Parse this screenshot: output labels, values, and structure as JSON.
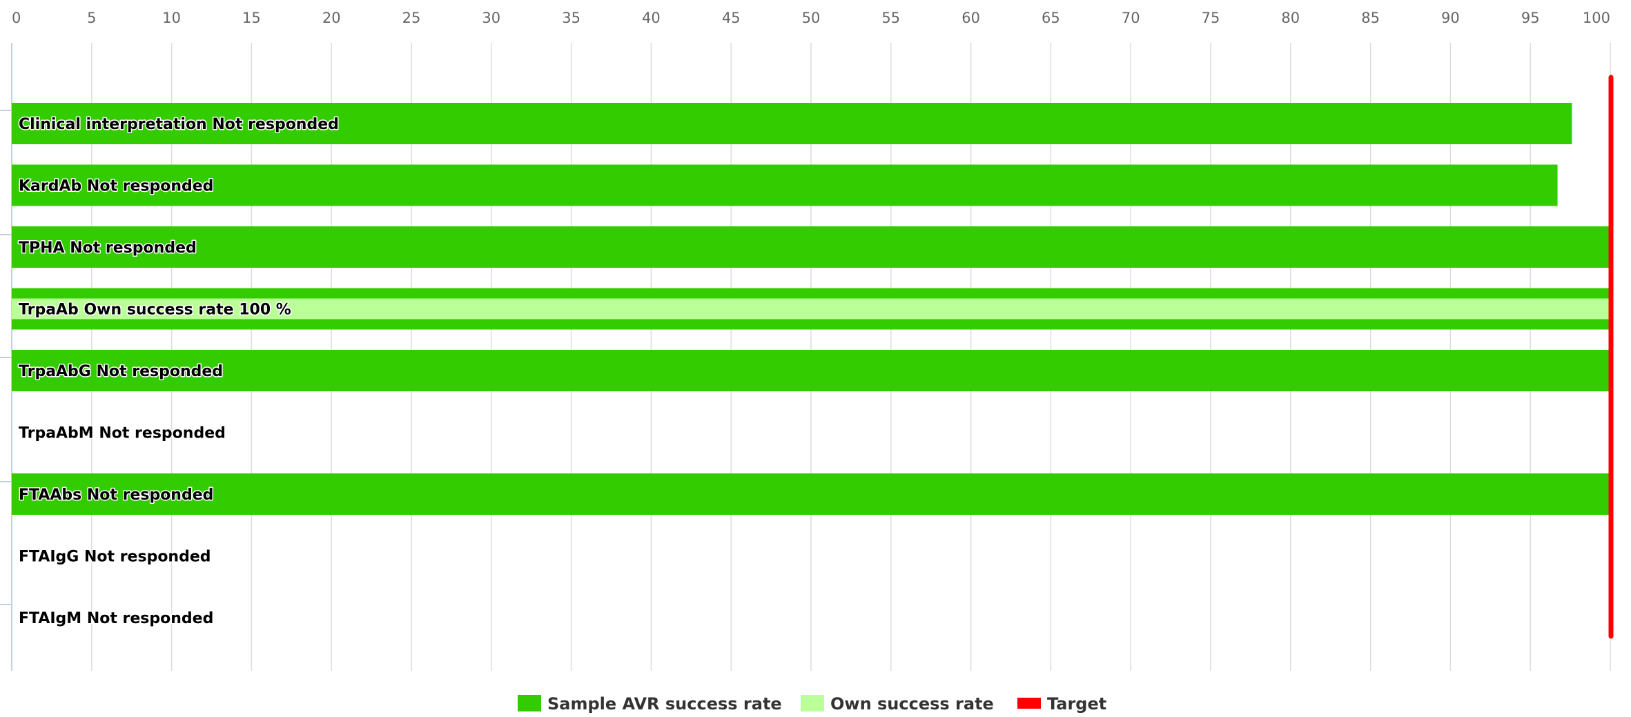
{
  "chart_data": {
    "type": "bar",
    "orientation": "horizontal",
    "xlim": [
      0,
      100
    ],
    "x_ticks": [
      0,
      5,
      10,
      15,
      20,
      25,
      30,
      35,
      40,
      45,
      50,
      55,
      60,
      65,
      70,
      75,
      80,
      85,
      90,
      95,
      100
    ],
    "grid": true,
    "x_axis_position": "top",
    "legend_position": "bottom-center",
    "categories": [
      "Clinical interpretation",
      "KardAb",
      "TPHA",
      "TrpaAb",
      "TrpaAbG",
      "TrpaAbM",
      "FTAAbs",
      "FTAIgG",
      "FTAIgM"
    ],
    "bar_labels": [
      "Clinical interpretation Not responded",
      "KardAb Not responded",
      "TPHA Not responded",
      "TrpaAb Own success rate 100 %",
      "TrpaAbG Not responded",
      "TrpaAbM Not responded",
      "FTAAbs Not responded",
      "FTAIgG Not responded",
      "FTAIgM Not responded"
    ],
    "series": [
      {
        "name": "Sample AVR success rate",
        "color": "#33cc00",
        "values": [
          97.6,
          96.7,
          100,
          100,
          100,
          null,
          100,
          null,
          null
        ]
      },
      {
        "name": "Own success rate",
        "color": "#bbff99",
        "values": [
          null,
          null,
          null,
          100,
          null,
          null,
          null,
          null,
          null
        ]
      }
    ],
    "target": {
      "name": "Target",
      "color": "#ff0000",
      "value": 100
    }
  }
}
